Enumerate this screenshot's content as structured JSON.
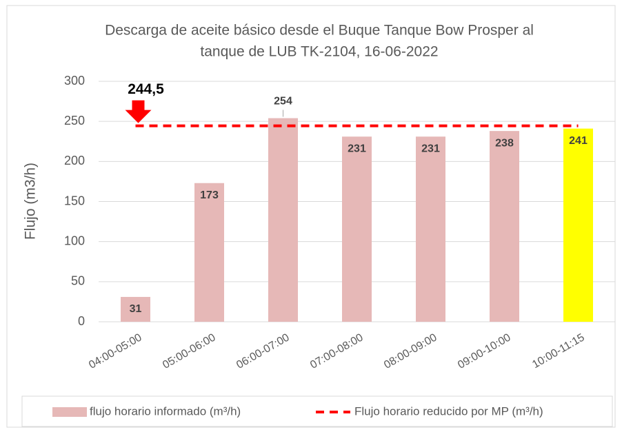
{
  "chart_data": {
    "type": "bar",
    "title": [
      "Descarga de aceite básico desde el Buque Tanque Bow Prosper al",
      "tanque de LUB TK-2104, 16-06-2022"
    ],
    "y_label": "Flujo (m3/h)",
    "categories": [
      "04:00-05:00",
      "05:00-06:00",
      "06:00-07:00",
      "07:00-08:00",
      "08:00-09:00",
      "09:00-10:00",
      "10:00-11:15"
    ],
    "series": [
      {
        "name": "flujo horario informado (m³/h)",
        "color": "#e6b8b7",
        "colors": [
          "#e6b8b7",
          "#e6b8b7",
          "#e6b8b7",
          "#e6b8b7",
          "#e6b8b7",
          "#e6b8b7",
          "#ffff00"
        ],
        "values": [
          31,
          173,
          254,
          231,
          231,
          238,
          241
        ]
      }
    ],
    "reference_line": {
      "name": "Flujo horario reducido por MP (m³/h)",
      "color": "#ff0000",
      "value": 244.5,
      "label": "244,5"
    },
    "ylim": [
      0,
      300
    ],
    "yticks": [
      0,
      50,
      100,
      150,
      200,
      250,
      300
    ],
    "grid": true
  }
}
